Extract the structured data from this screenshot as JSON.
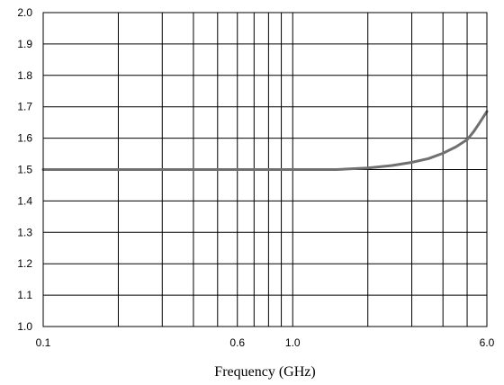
{
  "chart_data": {
    "type": "line",
    "title": "",
    "xlabel": "Frequency (GHz)",
    "ylabel": "",
    "x_scale": "log",
    "xlim": [
      0.1,
      6.0
    ],
    "ylim": [
      1.0,
      2.0
    ],
    "grid": true,
    "x_tick_labels": [
      {
        "value": 0.1,
        "label": "0.1"
      },
      {
        "value": 0.6,
        "label": "0.6"
      },
      {
        "value": 1.0,
        "label": "1.0"
      },
      {
        "value": 6.0,
        "label": "6.0"
      }
    ],
    "y_ticks": [
      1.0,
      1.1,
      1.2,
      1.3,
      1.4,
      1.5,
      1.6,
      1.7,
      1.8,
      1.9,
      2.0
    ],
    "y_tick_labels": [
      "1.0",
      "1.1",
      "1.2",
      "1.3",
      "1.4",
      "1.5",
      "1.6",
      "1.7",
      "1.8",
      "1.9",
      "2.0"
    ],
    "x_gridlines": [
      0.2,
      0.3,
      0.4,
      0.5,
      0.6,
      0.7,
      0.8,
      0.9,
      1.0,
      2.0,
      3.0,
      4.0,
      5.0
    ],
    "series": [
      {
        "color": "#707070",
        "x": [
          0.1,
          0.2,
          0.5,
          1.0,
          1.5,
          2.0,
          2.5,
          3.0,
          3.5,
          4.0,
          4.5,
          5.0,
          5.3,
          5.6,
          6.0
        ],
        "y": [
          1.5,
          1.5,
          1.5,
          1.5,
          1.5,
          1.505,
          1.513,
          1.523,
          1.535,
          1.552,
          1.572,
          1.595,
          1.62,
          1.648,
          1.685
        ]
      }
    ]
  }
}
